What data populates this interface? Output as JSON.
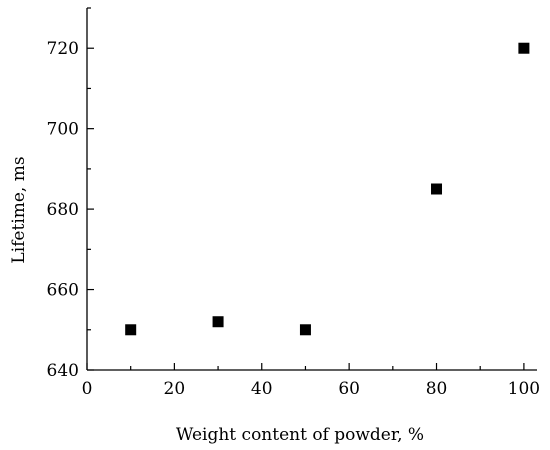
{
  "chart_data": {
    "type": "scatter",
    "title": "",
    "xlabel": "Weight content of powder, %",
    "ylabel": "Lifetime, ms",
    "xlim": [
      0,
      103
    ],
    "ylim": [
      640,
      730
    ],
    "xticks": [
      0,
      20,
      40,
      60,
      80,
      100
    ],
    "yticks": [
      640,
      660,
      680,
      700,
      720
    ],
    "grid": false,
    "legend": "none",
    "marker": "square",
    "color": "#000000",
    "series": [
      {
        "x": [
          10,
          30,
          50,
          80,
          100
        ],
        "y": [
          650,
          652,
          650,
          685,
          720
        ]
      }
    ]
  }
}
